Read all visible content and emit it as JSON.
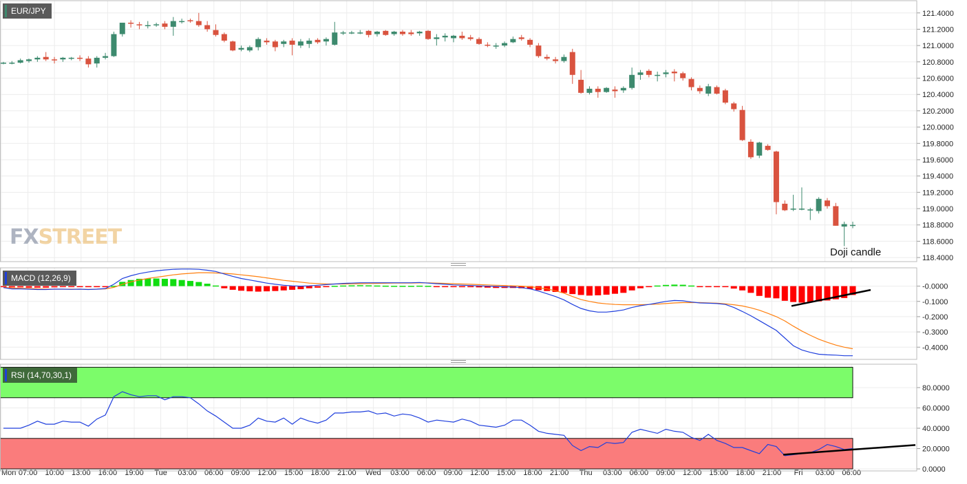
{
  "chart_data": [
    {
      "type": "candlestick",
      "symbol": "EUR/JPY",
      "ylim": [
        118.35,
        121.55
      ],
      "yticks": [
        "121.4000",
        "121.2000",
        "121.0000",
        "120.8000",
        "120.6000",
        "120.4000",
        "120.2000",
        "120.0000",
        "119.8000",
        "119.6000",
        "119.4000",
        "119.2000",
        "119.0000",
        "118.8000",
        "118.6000",
        "118.4000"
      ],
      "ytick_values": [
        121.4,
        121.2,
        121.0,
        120.8,
        120.6,
        120.4,
        120.2,
        120.0,
        119.8,
        119.6,
        119.4,
        119.2,
        119.0,
        118.8,
        118.6,
        118.4
      ],
      "candles": [
        [
          120.79,
          120.8,
          120.77,
          120.79
        ],
        [
          120.79,
          120.81,
          120.77,
          120.79
        ],
        [
          120.79,
          120.84,
          120.78,
          120.82
        ],
        [
          120.81,
          120.84,
          120.79,
          120.83
        ],
        [
          120.83,
          120.87,
          120.8,
          120.85
        ],
        [
          120.86,
          120.92,
          120.81,
          120.83
        ],
        [
          120.83,
          120.86,
          120.78,
          120.82
        ],
        [
          120.83,
          120.86,
          120.8,
          120.85
        ],
        [
          120.84,
          120.86,
          120.82,
          120.85
        ],
        [
          120.85,
          120.88,
          120.81,
          120.84
        ],
        [
          120.84,
          120.87,
          120.73,
          120.77
        ],
        [
          120.78,
          120.87,
          120.73,
          120.85
        ],
        [
          120.85,
          120.91,
          120.83,
          120.87
        ],
        [
          120.87,
          121.17,
          120.86,
          121.14
        ],
        [
          121.14,
          121.28,
          121.11,
          121.28
        ],
        [
          121.28,
          121.31,
          121.22,
          121.27
        ],
        [
          121.26,
          121.29,
          121.2,
          121.25
        ],
        [
          121.24,
          121.3,
          121.21,
          121.25
        ],
        [
          121.25,
          121.28,
          121.23,
          121.26
        ],
        [
          121.27,
          121.3,
          121.2,
          121.23
        ],
        [
          121.23,
          121.35,
          121.12,
          121.3
        ],
        [
          121.3,
          121.33,
          121.27,
          121.3
        ],
        [
          121.31,
          121.33,
          121.28,
          121.3
        ],
        [
          121.3,
          121.4,
          121.23,
          121.25
        ],
        [
          121.25,
          121.3,
          121.17,
          121.2
        ],
        [
          121.19,
          121.26,
          121.11,
          121.13
        ],
        [
          121.14,
          121.16,
          121.04,
          121.06
        ],
        [
          121.05,
          121.06,
          120.93,
          120.94
        ],
        [
          120.95,
          121.0,
          120.93,
          120.97
        ],
        [
          120.94,
          121.0,
          120.92,
          120.98
        ],
        [
          120.98,
          121.1,
          120.94,
          121.08
        ],
        [
          121.06,
          121.09,
          121.01,
          121.04
        ],
        [
          121.05,
          121.07,
          120.93,
          120.98
        ],
        [
          121.02,
          121.07,
          120.98,
          121.05
        ],
        [
          121.06,
          121.09,
          120.88,
          121.01
        ],
        [
          121.0,
          121.08,
          120.97,
          121.05
        ],
        [
          121.02,
          121.09,
          120.97,
          121.06
        ],
        [
          121.07,
          121.09,
          121.02,
          121.04
        ],
        [
          121.05,
          121.1,
          121.0,
          121.08
        ],
        [
          121.01,
          121.29,
          121.0,
          121.16
        ],
        [
          121.15,
          121.18,
          121.13,
          121.16
        ],
        [
          121.16,
          121.18,
          121.14,
          121.16
        ],
        [
          121.16,
          121.19,
          121.14,
          121.16
        ],
        [
          121.18,
          121.19,
          121.1,
          121.13
        ],
        [
          121.14,
          121.18,
          121.11,
          121.17
        ],
        [
          121.18,
          121.19,
          121.12,
          121.13
        ],
        [
          121.14,
          121.18,
          121.12,
          121.17
        ],
        [
          121.17,
          121.19,
          121.12,
          121.14
        ],
        [
          121.16,
          121.19,
          121.12,
          121.14
        ],
        [
          121.15,
          121.18,
          121.12,
          121.17
        ],
        [
          121.18,
          121.19,
          121.07,
          121.08
        ],
        [
          121.08,
          121.14,
          121.0,
          121.1
        ],
        [
          121.1,
          121.15,
          121.05,
          121.12
        ],
        [
          121.09,
          121.13,
          121.04,
          121.12
        ],
        [
          121.12,
          121.17,
          121.07,
          121.09
        ],
        [
          121.1,
          121.13,
          121.06,
          121.08
        ],
        [
          121.08,
          121.1,
          121.01,
          121.02
        ],
        [
          121.01,
          121.04,
          120.98,
          121.0
        ],
        [
          121.0,
          121.03,
          120.96,
          121.0
        ],
        [
          121.0,
          121.05,
          120.98,
          121.03
        ],
        [
          121.04,
          121.11,
          121.03,
          121.08
        ],
        [
          121.1,
          121.13,
          121.06,
          121.08
        ],
        [
          121.07,
          121.09,
          120.98,
          121.01
        ],
        [
          121.0,
          121.03,
          120.85,
          120.87
        ],
        [
          120.86,
          120.89,
          120.82,
          120.84
        ],
        [
          120.83,
          120.86,
          120.78,
          120.81
        ],
        [
          120.81,
          120.89,
          120.79,
          120.86
        ],
        [
          120.92,
          120.96,
          120.53,
          120.64
        ],
        [
          120.58,
          120.7,
          120.41,
          120.42
        ],
        [
          120.42,
          120.5,
          120.4,
          120.47
        ],
        [
          120.47,
          120.5,
          120.36,
          120.43
        ],
        [
          120.43,
          120.49,
          120.42,
          120.48
        ],
        [
          120.46,
          120.5,
          120.36,
          120.44
        ],
        [
          120.45,
          120.5,
          120.42,
          120.48
        ],
        [
          120.48,
          120.73,
          120.46,
          120.64
        ],
        [
          120.64,
          120.7,
          120.58,
          120.67
        ],
        [
          120.69,
          120.71,
          120.61,
          120.64
        ],
        [
          120.64,
          120.68,
          120.56,
          120.64
        ],
        [
          120.65,
          120.7,
          120.61,
          120.67
        ],
        [
          120.68,
          120.71,
          120.56,
          120.66
        ],
        [
          120.66,
          120.68,
          120.57,
          120.6
        ],
        [
          120.59,
          120.61,
          120.45,
          120.49
        ],
        [
          120.48,
          120.51,
          120.41,
          120.44
        ],
        [
          120.41,
          120.53,
          120.38,
          120.5
        ],
        [
          120.49,
          120.51,
          120.4,
          120.41
        ],
        [
          120.45,
          120.47,
          120.28,
          120.3
        ],
        [
          120.29,
          120.31,
          120.19,
          120.22
        ],
        [
          120.21,
          120.26,
          119.83,
          119.84
        ],
        [
          119.82,
          119.85,
          119.61,
          119.63
        ],
        [
          119.65,
          119.82,
          119.62,
          119.81
        ],
        [
          119.77,
          119.79,
          119.71,
          119.72
        ],
        [
          119.7,
          119.71,
          118.93,
          119.08
        ],
        [
          119.06,
          119.1,
          118.97,
          118.98
        ],
        [
          119.0,
          119.17,
          118.97,
          119.0
        ],
        [
          118.99,
          119.26,
          118.98,
          119.0
        ],
        [
          118.98,
          119.01,
          118.86,
          118.99
        ],
        [
          118.97,
          119.14,
          118.94,
          119.12
        ],
        [
          119.1,
          119.13,
          119.0,
          119.03
        ],
        [
          119.03,
          119.07,
          118.79,
          118.79
        ],
        [
          118.78,
          118.84,
          118.54,
          118.81
        ],
        [
          118.8,
          118.84,
          118.76,
          118.8
        ]
      ]
    },
    {
      "type": "macd",
      "label": "MACD (12,26,9)",
      "ylim": [
        -0.48,
        0.12
      ],
      "yticks": [
        "-0.0000",
        "-0.1000",
        "-0.2000",
        "-0.3000",
        "-0.4000"
      ],
      "ytick_values": [
        0,
        -0.1,
        -0.2,
        -0.3,
        -0.4
      ],
      "histogram": [
        -0.005,
        -0.008,
        -0.008,
        -0.01,
        -0.01,
        -0.01,
        -0.008,
        -0.006,
        -0.006,
        -0.006,
        -0.006,
        -0.006,
        -0.006,
        0.002,
        0.028,
        0.04,
        0.048,
        0.05,
        0.05,
        0.048,
        0.046,
        0.04,
        0.034,
        0.027,
        0.016,
        0.004,
        -0.014,
        -0.024,
        -0.03,
        -0.034,
        -0.036,
        -0.034,
        -0.032,
        -0.028,
        -0.024,
        -0.02,
        -0.014,
        -0.01,
        -0.004,
        0.002,
        0.004,
        0.005,
        0.006,
        0.005,
        0.004,
        0.003,
        0.002,
        0.002,
        0.002,
        0.003,
        0.002,
        -0.002,
        -0.004,
        -0.006,
        -0.007,
        -0.007,
        -0.008,
        -0.01,
        -0.012,
        -0.012,
        -0.012,
        -0.014,
        -0.018,
        -0.026,
        -0.032,
        -0.038,
        -0.044,
        -0.052,
        -0.058,
        -0.062,
        -0.06,
        -0.056,
        -0.05,
        -0.044,
        -0.028,
        -0.014,
        -0.004,
        0.004,
        0.008,
        0.01,
        0.009,
        0.004,
        -0.001,
        -0.001,
        -0.002,
        -0.004,
        -0.016,
        -0.028,
        -0.044,
        -0.064,
        -0.076,
        -0.08,
        -0.096,
        -0.104,
        -0.108,
        -0.104,
        -0.1,
        -0.094,
        -0.086,
        -0.078,
        -0.058
      ],
      "macd_line": [
        -0.01,
        -0.018,
        -0.018,
        -0.02,
        -0.022,
        -0.022,
        -0.02,
        -0.02,
        -0.021,
        -0.02,
        -0.022,
        -0.02,
        -0.016,
        0.012,
        0.05,
        0.068,
        0.082,
        0.092,
        0.1,
        0.106,
        0.11,
        0.112,
        0.112,
        0.11,
        0.104,
        0.096,
        0.08,
        0.064,
        0.05,
        0.04,
        0.03,
        0.02,
        0.012,
        0.006,
        0.002,
        0,
        0.002,
        0.006,
        0.01,
        0.014,
        0.018,
        0.02,
        0.022,
        0.022,
        0.022,
        0.022,
        0.022,
        0.022,
        0.022,
        0.024,
        0.02,
        0.016,
        0.012,
        0.008,
        0.006,
        0.004,
        0.002,
        0,
        -0.002,
        -0.004,
        -0.006,
        -0.01,
        -0.018,
        -0.032,
        -0.05,
        -0.068,
        -0.09,
        -0.12,
        -0.146,
        -0.162,
        -0.17,
        -0.17,
        -0.164,
        -0.156,
        -0.14,
        -0.128,
        -0.12,
        -0.11,
        -0.1,
        -0.094,
        -0.096,
        -0.104,
        -0.11,
        -0.112,
        -0.114,
        -0.12,
        -0.14,
        -0.166,
        -0.194,
        -0.226,
        -0.258,
        -0.29,
        -0.34,
        -0.39,
        -0.418,
        -0.434,
        -0.446,
        -0.45,
        -0.452,
        -0.456,
        -0.456
      ],
      "signal_line": [
        -0.008,
        -0.012,
        -0.014,
        -0.016,
        -0.018,
        -0.019,
        -0.02,
        -0.02,
        -0.02,
        -0.02,
        -0.021,
        -0.02,
        -0.018,
        -0.008,
        0.012,
        0.028,
        0.04,
        0.05,
        0.058,
        0.066,
        0.074,
        0.08,
        0.084,
        0.088,
        0.088,
        0.086,
        0.084,
        0.08,
        0.074,
        0.068,
        0.062,
        0.054,
        0.046,
        0.038,
        0.032,
        0.026,
        0.02,
        0.017,
        0.015,
        0.014,
        0.014,
        0.015,
        0.016,
        0.017,
        0.018,
        0.019,
        0.02,
        0.02,
        0.02,
        0.021,
        0.021,
        0.02,
        0.018,
        0.016,
        0.014,
        0.012,
        0.01,
        0.008,
        0.006,
        0.004,
        0.002,
        0,
        -0.004,
        -0.01,
        -0.018,
        -0.03,
        -0.046,
        -0.068,
        -0.088,
        -0.1,
        -0.11,
        -0.116,
        -0.12,
        -0.122,
        -0.122,
        -0.122,
        -0.12,
        -0.118,
        -0.114,
        -0.11,
        -0.108,
        -0.108,
        -0.108,
        -0.11,
        -0.112,
        -0.116,
        -0.122,
        -0.13,
        -0.142,
        -0.158,
        -0.178,
        -0.2,
        -0.228,
        -0.262,
        -0.294,
        -0.322,
        -0.348,
        -0.368,
        -0.386,
        -0.4,
        -0.41
      ]
    },
    {
      "type": "rsi",
      "label": "RSI (14,70,30,1)",
      "ylim": [
        -2,
        103
      ],
      "yticks": [
        "80.0000",
        "60.0000",
        "40.0000",
        "20.0000",
        "0.0000"
      ],
      "ytick_values": [
        80,
        60,
        40,
        20,
        0
      ],
      "overbought": 70,
      "oversold": 30,
      "values": [
        40,
        40,
        40,
        43,
        47,
        44,
        44,
        47,
        46,
        46,
        42,
        49,
        53,
        71,
        76,
        73,
        71,
        72,
        72,
        68,
        71,
        71,
        70,
        64,
        57,
        52,
        46,
        40,
        40,
        43,
        50,
        47,
        46,
        50,
        44,
        50,
        47,
        45,
        48,
        55,
        55,
        56,
        56,
        57,
        54,
        55,
        52,
        54,
        53,
        50,
        46,
        48,
        47,
        46,
        49,
        47,
        43,
        42,
        41,
        43,
        48,
        48,
        43,
        37,
        35,
        34,
        33,
        23,
        18,
        22,
        21,
        26,
        25,
        26,
        36,
        39,
        37,
        35,
        39,
        37,
        36,
        31,
        28,
        34,
        28,
        25,
        21,
        21,
        18,
        15,
        24,
        22,
        13,
        14,
        15,
        16,
        19,
        24,
        22,
        19,
        20
      ]
    }
  ],
  "x_labels": [
    "Mon",
    "07:00",
    "10:00",
    "13:00",
    "16:00",
    "19:00",
    "Tue",
    "03:00",
    "06:00",
    "09:00",
    "12:00",
    "15:00",
    "18:00",
    "21:00",
    "Wed",
    "03:00",
    "06:00",
    "09:00",
    "12:00",
    "15:00",
    "18:00",
    "21:00",
    "Thu",
    "03:00",
    "06:00",
    "09:00",
    "12:00",
    "15:00",
    "18:00",
    "21:00",
    "Fri",
    "03:00",
    "06:00"
  ],
  "watermark": {
    "part1": "FX",
    "part2": "STREET"
  },
  "annotation": "Doji candle",
  "colors": {
    "up": "#3d8a6e",
    "down": "#d9533f",
    "macd_line": "#1f3fdd",
    "signal_line": "#ff7f0e",
    "hist_pos": "#11dd11",
    "hist_neg": "#ff0000",
    "rsi_line": "#1f3fdd",
    "overbought_fill": "#7cfc6a",
    "oversold_fill": "#fa7c7c",
    "grid": "#ececec"
  }
}
